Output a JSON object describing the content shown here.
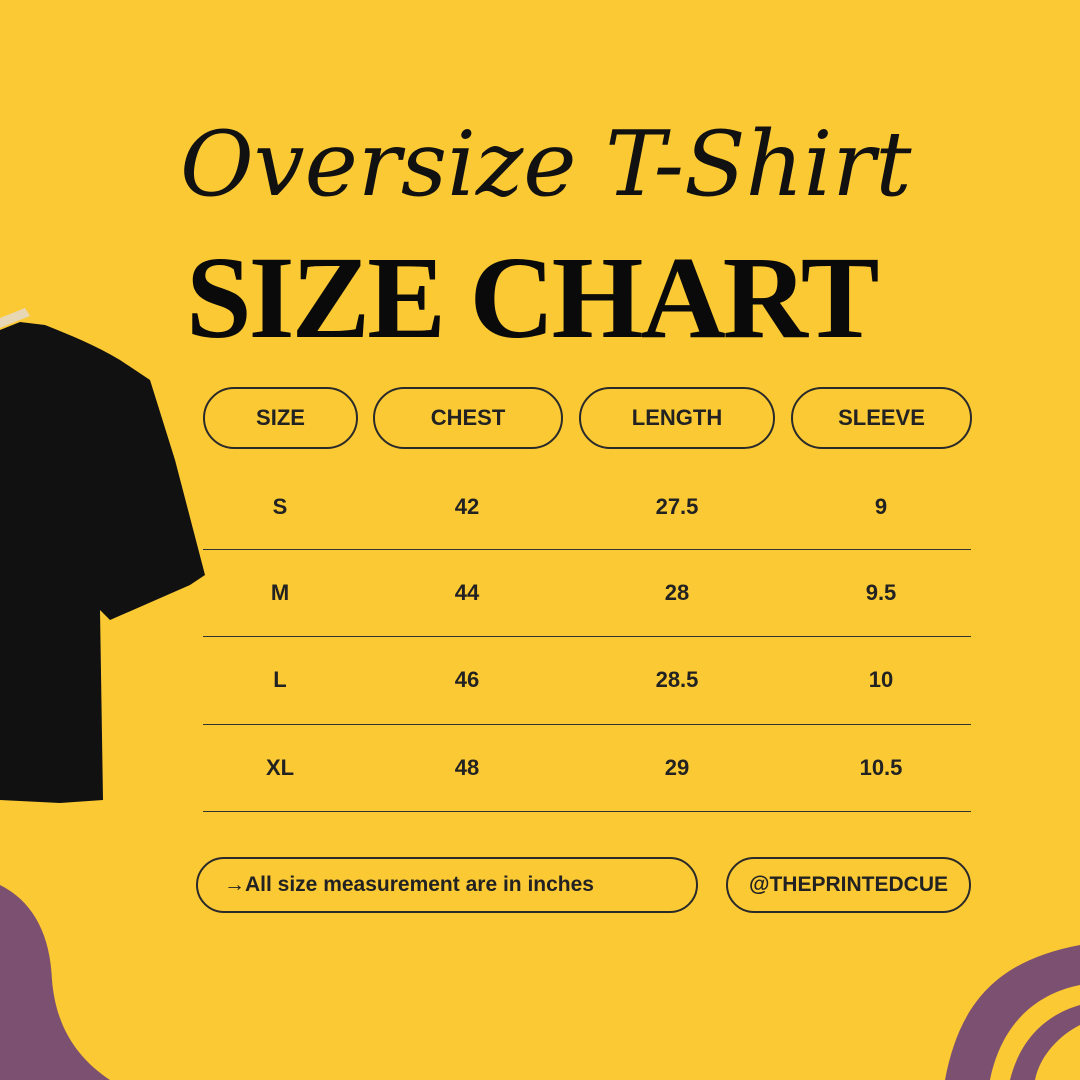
{
  "title_script": "Oversize T-Shirt",
  "title_main": "SIZE CHART",
  "table": {
    "headers": [
      "SIZE",
      "CHEST",
      "LENGTH",
      "SLEEVE"
    ],
    "rows": [
      [
        "S",
        "42",
        "27.5",
        "9"
      ],
      [
        "M",
        "44",
        "28",
        "9.5"
      ],
      [
        "L",
        "46",
        "28.5",
        "10"
      ],
      [
        "XL",
        "48",
        "29",
        "10.5"
      ]
    ]
  },
  "footer": {
    "note": "→All size measurement are in inches",
    "handle": "@THEPRINTEDCUE"
  },
  "colors": {
    "background": "#FBC933",
    "accent": "#7B5070",
    "text": "#222222"
  }
}
